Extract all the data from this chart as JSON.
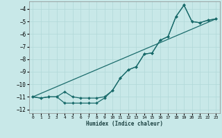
{
  "xlabel": "Humidex (Indice chaleur)",
  "bg_color": "#c8e8e8",
  "grid_color": "#b0d8d8",
  "line_color": "#1a6b6b",
  "xlim": [
    -0.5,
    23.5
  ],
  "ylim": [
    -12.3,
    -3.4
  ],
  "yticks": [
    -12,
    -11,
    -10,
    -9,
    -8,
    -7,
    -6,
    -5,
    -4
  ],
  "xticks": [
    0,
    1,
    2,
    3,
    4,
    5,
    6,
    7,
    8,
    9,
    10,
    11,
    12,
    13,
    14,
    15,
    16,
    17,
    18,
    19,
    20,
    21,
    22,
    23
  ],
  "line1_x": [
    0,
    1,
    2,
    3,
    4,
    5,
    6,
    7,
    8,
    9,
    10,
    11,
    12,
    13,
    14,
    15,
    16,
    17,
    18,
    19,
    20,
    21,
    22,
    23
  ],
  "line1_y": [
    -11.0,
    -11.1,
    -11.0,
    -11.0,
    -10.6,
    -11.0,
    -11.1,
    -11.1,
    -11.1,
    -11.0,
    -10.5,
    -9.5,
    -8.85,
    -8.6,
    -7.6,
    -7.5,
    -6.5,
    -6.2,
    -4.6,
    -3.7,
    -5.0,
    -5.1,
    -4.9,
    -4.8
  ],
  "line2_x": [
    0,
    1,
    2,
    3,
    4,
    5,
    6,
    7,
    8,
    9,
    10,
    11,
    12,
    13,
    14,
    15,
    16,
    17,
    18,
    19,
    20,
    21,
    22,
    23
  ],
  "line2_y": [
    -11.0,
    -11.1,
    -11.0,
    -11.0,
    -11.5,
    -11.5,
    -11.5,
    -11.5,
    -11.5,
    -11.1,
    -10.5,
    -9.5,
    -8.85,
    -8.6,
    -7.6,
    -7.5,
    -6.5,
    -6.2,
    -4.6,
    -3.7,
    -5.0,
    -5.1,
    -4.9,
    -4.8
  ],
  "line3_x": [
    0,
    23
  ],
  "line3_y": [
    -11.0,
    -4.8
  ]
}
